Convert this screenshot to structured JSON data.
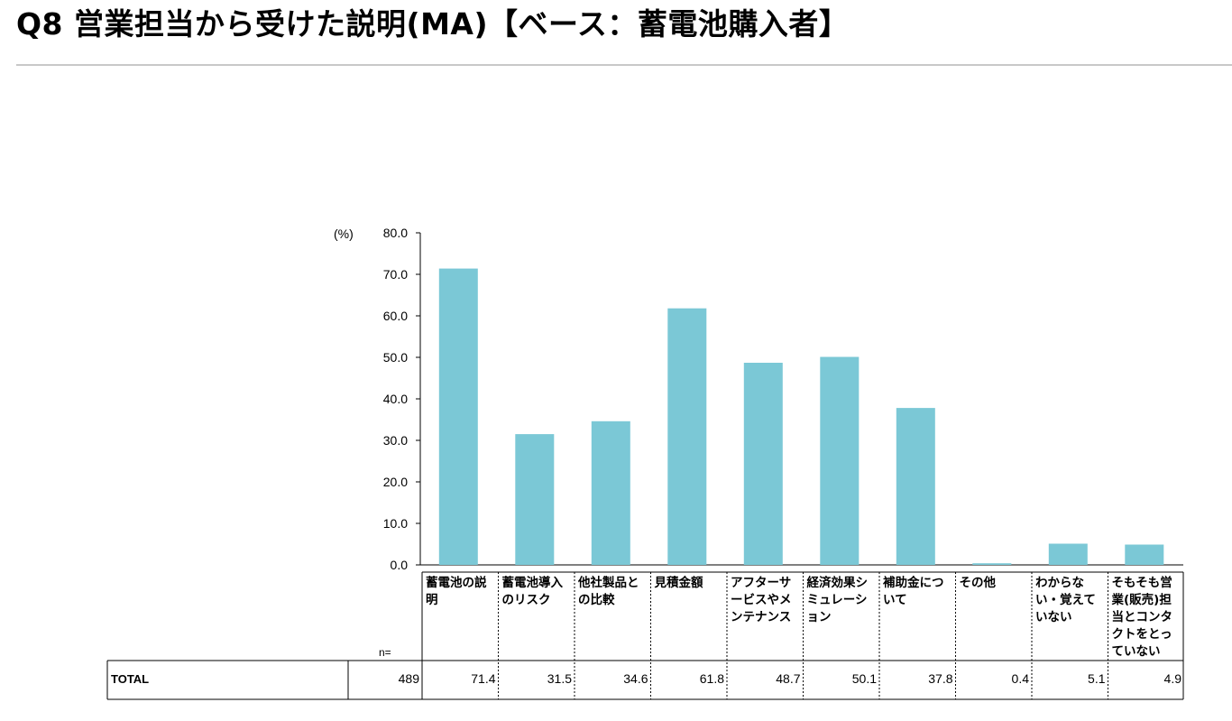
{
  "page": {
    "title": "Q8 営業担当から受けた説明(MA)【ベース：蓄電池購入者】"
  },
  "chart_data": {
    "type": "bar",
    "unit_label": "(%)",
    "ylim": [
      0,
      80
    ],
    "yticks": [
      "80.0",
      "70.0",
      "60.0",
      "50.0",
      "40.0",
      "30.0",
      "20.0",
      "10.0",
      "0.0"
    ],
    "bar_color": "#7BC8D6",
    "categories": [
      "蓄電池の説明",
      "蓄電池導入のリスク",
      "他社製品との比較",
      "見積金額",
      "アフターサービスやメンテナンス",
      "経済効果シミュレーション",
      "補助金について",
      "その他",
      "わからない・覚えていない",
      "そもそも営業(販売)担当とコンタクトをとっていない"
    ],
    "series": [
      {
        "values": [
          71.4,
          31.5,
          34.6,
          61.8,
          48.7,
          50.1,
          37.8,
          0.4,
          5.1,
          4.9
        ]
      }
    ],
    "grid": false,
    "legend": "none"
  },
  "table": {
    "n_header": "n=",
    "row_label": "TOTAL",
    "n_value": "489",
    "values": [
      "71.4",
      "31.5",
      "34.6",
      "61.8",
      "48.7",
      "50.1",
      "37.8",
      "0.4",
      "5.1",
      "4.9"
    ]
  }
}
